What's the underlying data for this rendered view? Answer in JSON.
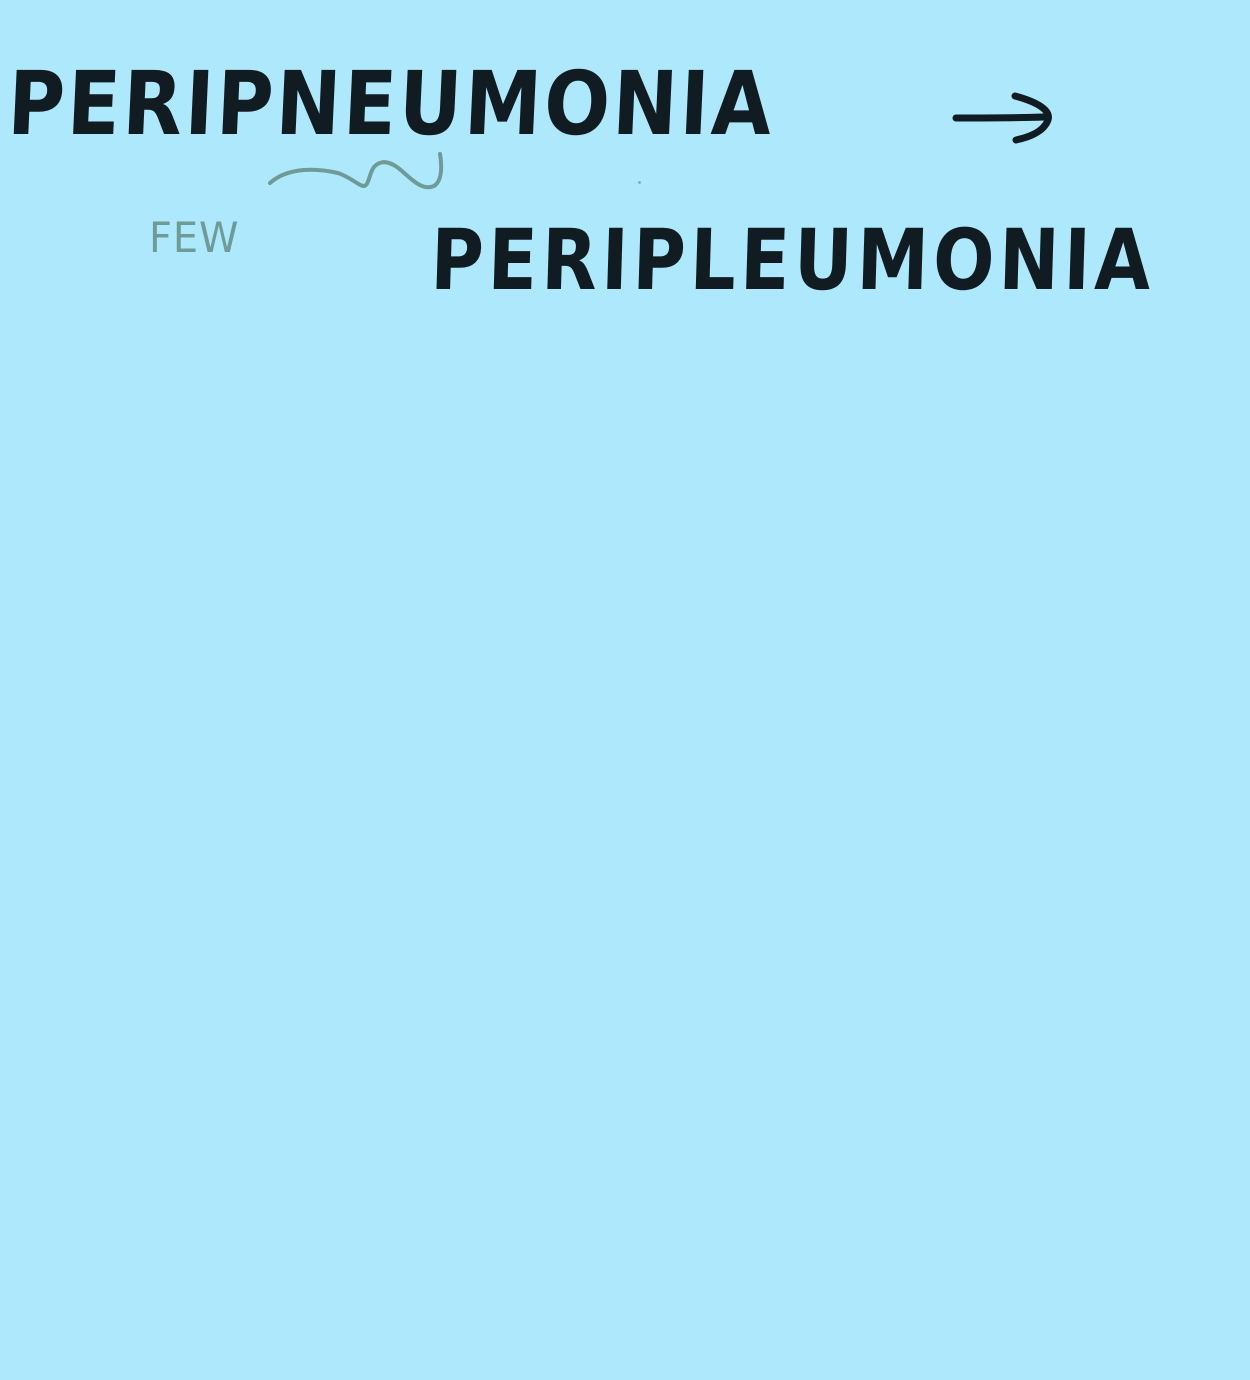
{
  "note": {
    "original_word": "PERIPNEUMONIA",
    "corrected_word": "PERIPLEUMONIA",
    "annotation": "FEW"
  },
  "icons": {
    "arrow": "right-arrow-icon",
    "squiggle": "squiggle-underline-icon"
  },
  "colors": {
    "paper": "#ade8fd",
    "ink": "#111c22",
    "annotation_ink": "#6f9b96"
  }
}
